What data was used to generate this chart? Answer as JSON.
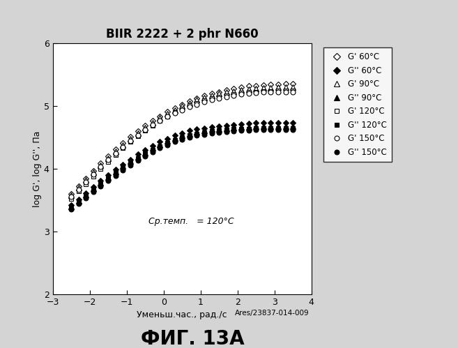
{
  "title": "BIIR 2222 + 2 phr N660",
  "xlabel": "Уменьш.час., рад./с",
  "ylabel": "log G', log G'', Па",
  "xlim": [
    -3,
    4
  ],
  "ylim": [
    2,
    6
  ],
  "xticks": [
    -3,
    -2,
    -1,
    0,
    1,
    2,
    3,
    4
  ],
  "yticks": [
    2,
    3,
    4,
    5,
    6
  ],
  "annotation": "Ср.темп.   = 120°C",
  "watermark": "Ares/23837-014-009",
  "figure_caption": "ФИГ. 13А",
  "background_color": "#d4d4d4",
  "plot_bg_color": "#ffffff",
  "series": [
    {
      "label": "G' 60°C",
      "marker": "D",
      "filled": false,
      "x": [
        -2.5,
        -2.3,
        -2.1,
        -1.9,
        -1.7,
        -1.5,
        -1.3,
        -1.1,
        -0.9,
        -0.7,
        -0.5,
        -0.3,
        -0.1,
        0.1,
        0.3,
        0.5,
        0.7,
        0.9,
        1.1,
        1.3,
        1.5,
        1.7,
        1.9,
        2.1,
        2.3,
        2.5,
        2.7,
        2.9,
        3.1,
        3.3,
        3.5
      ],
      "y": [
        3.6,
        3.72,
        3.84,
        3.97,
        4.09,
        4.2,
        4.31,
        4.41,
        4.51,
        4.6,
        4.69,
        4.77,
        4.84,
        4.91,
        4.97,
        5.03,
        5.08,
        5.13,
        5.17,
        5.2,
        5.23,
        5.26,
        5.28,
        5.3,
        5.32,
        5.33,
        5.34,
        5.35,
        5.35,
        5.36,
        5.36
      ]
    },
    {
      "label": "G'' 60°C",
      "marker": "D",
      "filled": true,
      "x": [
        -2.5,
        -2.3,
        -2.1,
        -1.9,
        -1.7,
        -1.5,
        -1.3,
        -1.1,
        -0.9,
        -0.7,
        -0.5,
        -0.3,
        -0.1,
        0.1,
        0.3,
        0.5,
        0.7,
        0.9,
        1.1,
        1.3,
        1.5,
        1.7,
        1.9,
        2.1,
        2.3,
        2.5,
        2.7,
        2.9,
        3.1,
        3.3,
        3.5
      ],
      "y": [
        3.42,
        3.51,
        3.61,
        3.71,
        3.81,
        3.9,
        3.99,
        4.07,
        4.15,
        4.23,
        4.3,
        4.37,
        4.43,
        4.48,
        4.53,
        4.57,
        4.61,
        4.63,
        4.65,
        4.67,
        4.68,
        4.69,
        4.7,
        4.71,
        4.72,
        4.73,
        4.73,
        4.73,
        4.73,
        4.73,
        4.73
      ]
    },
    {
      "label": "G' 90°C",
      "marker": "^",
      "filled": false,
      "x": [
        -2.5,
        -2.3,
        -2.1,
        -1.9,
        -1.7,
        -1.5,
        -1.3,
        -1.1,
        -0.9,
        -0.7,
        -0.5,
        -0.3,
        -0.1,
        0.1,
        0.3,
        0.5,
        0.7,
        0.9,
        1.1,
        1.3,
        1.5,
        1.7,
        1.9,
        2.1,
        2.3,
        2.5,
        2.7,
        2.9,
        3.1,
        3.3,
        3.5
      ],
      "y": [
        3.58,
        3.7,
        3.82,
        3.94,
        4.06,
        4.17,
        4.28,
        4.38,
        4.48,
        4.57,
        4.66,
        4.74,
        4.81,
        4.88,
        4.94,
        5.0,
        5.05,
        5.1,
        5.14,
        5.17,
        5.2,
        5.22,
        5.24,
        5.26,
        5.27,
        5.28,
        5.29,
        5.29,
        5.3,
        5.3,
        5.3
      ]
    },
    {
      "label": "G'' 90°C",
      "marker": "^",
      "filled": true,
      "x": [
        -2.5,
        -2.3,
        -2.1,
        -1.9,
        -1.7,
        -1.5,
        -1.3,
        -1.1,
        -0.9,
        -0.7,
        -0.5,
        -0.3,
        -0.1,
        0.1,
        0.3,
        0.5,
        0.7,
        0.9,
        1.1,
        1.3,
        1.5,
        1.7,
        1.9,
        2.1,
        2.3,
        2.5,
        2.7,
        2.9,
        3.1,
        3.3,
        3.5
      ],
      "y": [
        3.4,
        3.49,
        3.59,
        3.69,
        3.78,
        3.87,
        3.96,
        4.04,
        4.12,
        4.19,
        4.26,
        4.33,
        4.39,
        4.44,
        4.49,
        4.53,
        4.56,
        4.59,
        4.61,
        4.63,
        4.64,
        4.65,
        4.66,
        4.67,
        4.67,
        4.68,
        4.68,
        4.68,
        4.68,
        4.68,
        4.68
      ]
    },
    {
      "label": "G' 120°C",
      "marker": "s",
      "filled": false,
      "x": [
        -2.5,
        -2.3,
        -2.1,
        -1.9,
        -1.7,
        -1.5,
        -1.3,
        -1.1,
        -0.9,
        -0.7,
        -0.5,
        -0.3,
        -0.1,
        0.1,
        0.3,
        0.5,
        0.7,
        0.9,
        1.1,
        1.3,
        1.5,
        1.7,
        1.9,
        2.1,
        2.3,
        2.5,
        2.7,
        2.9,
        3.1,
        3.3,
        3.5
      ],
      "y": [
        3.52,
        3.64,
        3.76,
        3.88,
        4.0,
        4.11,
        4.22,
        4.33,
        4.43,
        4.52,
        4.61,
        4.69,
        4.77,
        4.84,
        4.9,
        4.96,
        5.01,
        5.05,
        5.09,
        5.12,
        5.15,
        5.17,
        5.19,
        5.21,
        5.22,
        5.23,
        5.24,
        5.24,
        5.25,
        5.25,
        5.25
      ]
    },
    {
      "label": "G'' 120°C",
      "marker": "s",
      "filled": true,
      "x": [
        -2.5,
        -2.3,
        -2.1,
        -1.9,
        -1.7,
        -1.5,
        -1.3,
        -1.1,
        -0.9,
        -0.7,
        -0.5,
        -0.3,
        -0.1,
        0.1,
        0.3,
        0.5,
        0.7,
        0.9,
        1.1,
        1.3,
        1.5,
        1.7,
        1.9,
        2.1,
        2.3,
        2.5,
        2.7,
        2.9,
        3.1,
        3.3,
        3.5
      ],
      "y": [
        3.37,
        3.46,
        3.56,
        3.66,
        3.75,
        3.84,
        3.93,
        4.01,
        4.09,
        4.17,
        4.24,
        4.3,
        4.36,
        4.41,
        4.46,
        4.5,
        4.53,
        4.56,
        4.58,
        4.6,
        4.61,
        4.62,
        4.63,
        4.64,
        4.64,
        4.65,
        4.65,
        4.65,
        4.65,
        4.65,
        4.65
      ]
    },
    {
      "label": "G' 150°C",
      "marker": "o",
      "filled": false,
      "x": [
        -2.5,
        -2.3,
        -2.1,
        -1.9,
        -1.7,
        -1.5,
        -1.3,
        -1.1,
        -0.9,
        -0.7,
        -0.5,
        -0.3,
        -0.1,
        0.1,
        0.3,
        0.5,
        0.7,
        0.9,
        1.1,
        1.3,
        1.5,
        1.7,
        1.9,
        2.1,
        2.3,
        2.5,
        2.7,
        2.9,
        3.1,
        3.3,
        3.5
      ],
      "y": [
        3.55,
        3.67,
        3.79,
        3.91,
        4.03,
        4.14,
        4.25,
        4.35,
        4.44,
        4.53,
        4.62,
        4.7,
        4.77,
        4.83,
        4.89,
        4.94,
        4.99,
        5.03,
        5.07,
        5.1,
        5.13,
        5.15,
        5.17,
        5.19,
        5.2,
        5.21,
        5.22,
        5.22,
        5.22,
        5.22,
        5.22
      ]
    },
    {
      "label": "G'' 150°C",
      "marker": "o",
      "filled": true,
      "x": [
        -2.5,
        -2.3,
        -2.1,
        -1.9,
        -1.7,
        -1.5,
        -1.3,
        -1.1,
        -0.9,
        -0.7,
        -0.5,
        -0.3,
        -0.1,
        0.1,
        0.3,
        0.5,
        0.7,
        0.9,
        1.1,
        1.3,
        1.5,
        1.7,
        1.9,
        2.1,
        2.3,
        2.5,
        2.7,
        2.9,
        3.1,
        3.3,
        3.5
      ],
      "y": [
        3.35,
        3.44,
        3.53,
        3.63,
        3.72,
        3.81,
        3.89,
        3.98,
        4.06,
        4.13,
        4.2,
        4.27,
        4.33,
        4.38,
        4.43,
        4.47,
        4.5,
        4.53,
        4.55,
        4.57,
        4.58,
        4.59,
        4.6,
        4.61,
        4.61,
        4.62,
        4.62,
        4.62,
        4.62,
        4.62,
        4.62
      ]
    }
  ]
}
